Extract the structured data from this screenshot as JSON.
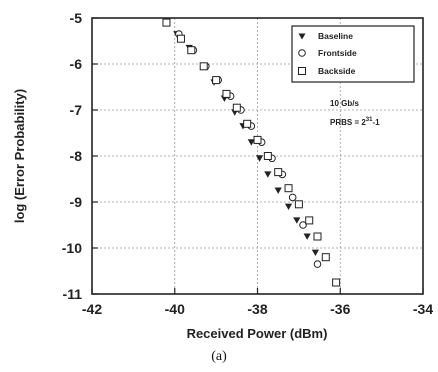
{
  "caption": "(a)",
  "chart_data": {
    "type": "scatter",
    "xlabel": "Received Power (dBm)",
    "ylabel": "log (Error Probability)",
    "xlim": [
      -42,
      -34
    ],
    "ylim": [
      -11,
      -5
    ],
    "xticks": [
      "-42",
      "-40",
      "-38",
      "-36",
      "-34"
    ],
    "yticks": [
      "-5",
      "-6",
      "-7",
      "-8",
      "-9",
      "-10",
      "-11"
    ],
    "grid": true,
    "legend_position": "top-right",
    "annotation": {
      "line1": "10 Gb/s",
      "line2_prefix": "PRBS = 2",
      "line2_exp": "31",
      "line2_suffix": "-1"
    },
    "series": [
      {
        "name": "Baseline",
        "marker": "triangle-down",
        "x": [
          -39.95,
          -39.65,
          -39.3,
          -39.05,
          -38.8,
          -38.55,
          -38.35,
          -38.15,
          -37.95,
          -37.75,
          -37.5,
          -37.25,
          -37.05,
          -36.8,
          -36.6
        ],
        "y": [
          -5.35,
          -5.65,
          -6.05,
          -6.4,
          -6.75,
          -7.05,
          -7.35,
          -7.7,
          -8.05,
          -8.4,
          -8.75,
          -9.1,
          -9.4,
          -9.75,
          -10.1
        ]
      },
      {
        "name": "Frontside",
        "marker": "circle",
        "x": [
          -39.9,
          -39.55,
          -39.25,
          -38.95,
          -38.65,
          -38.4,
          -38.15,
          -37.9,
          -37.65,
          -37.4,
          -37.15,
          -36.9,
          -36.55
        ],
        "y": [
          -5.35,
          -5.7,
          -6.05,
          -6.35,
          -6.7,
          -7.0,
          -7.35,
          -7.7,
          -8.05,
          -8.4,
          -8.9,
          -9.5,
          -10.35
        ]
      },
      {
        "name": "Backside",
        "marker": "square",
        "x": [
          -40.2,
          -39.85,
          -39.6,
          -39.3,
          -39.0,
          -38.75,
          -38.5,
          -38.25,
          -38.0,
          -37.75,
          -37.5,
          -37.25,
          -37.0,
          -36.75,
          -36.55,
          -36.35,
          -36.1
        ],
        "y": [
          -5.1,
          -5.45,
          -5.7,
          -6.05,
          -6.35,
          -6.65,
          -6.95,
          -7.3,
          -7.65,
          -8.0,
          -8.35,
          -8.7,
          -9.05,
          -9.4,
          -9.75,
          -10.2,
          -10.75
        ]
      }
    ]
  }
}
